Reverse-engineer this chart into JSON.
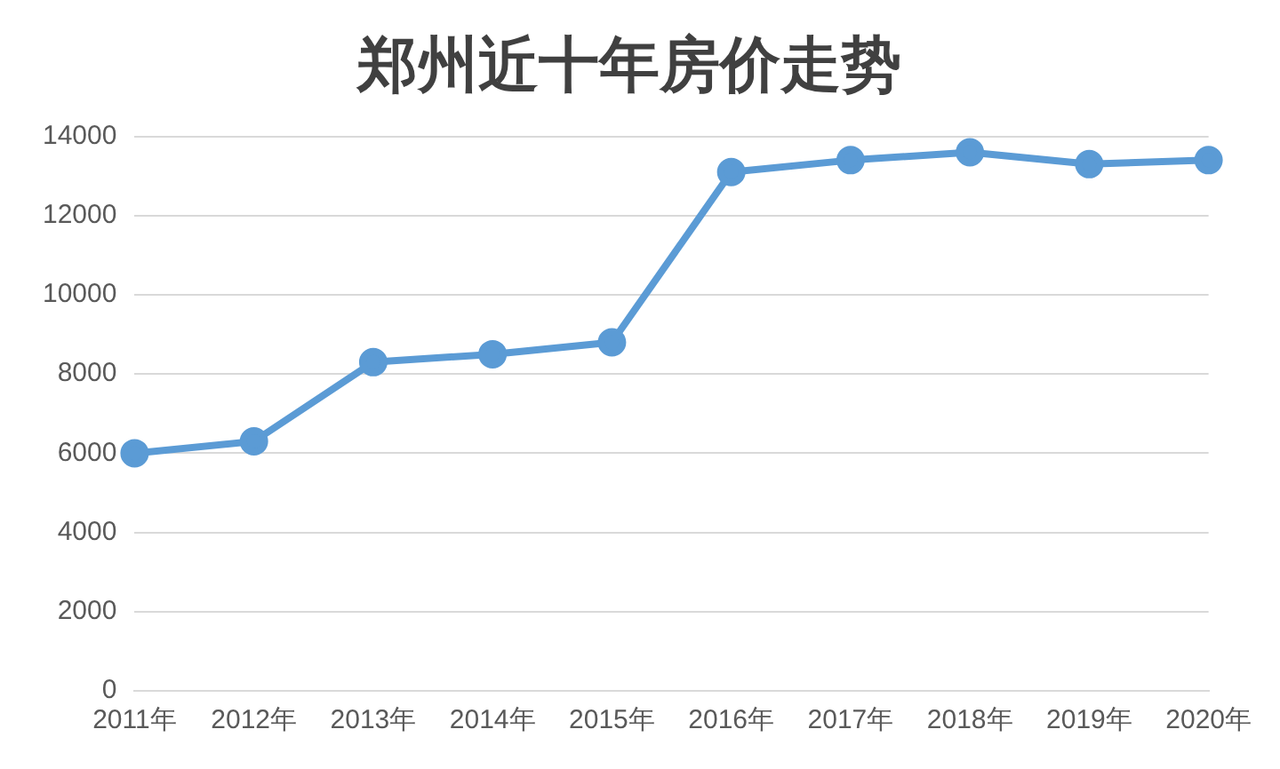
{
  "chart_data": {
    "type": "line",
    "title": "郑州近十年房价走势",
    "categories": [
      "2011年",
      "2012年",
      "2013年",
      "2014年",
      "2015年",
      "2016年",
      "2017年",
      "2018年",
      "2019年",
      "2020年"
    ],
    "series": [
      {
        "color": "#5b9bd5",
        "values": [
          6000,
          6300,
          8300,
          8500,
          8800,
          13100,
          13400,
          13600,
          13300,
          13400
        ]
      }
    ],
    "ylim": [
      0,
      14000
    ],
    "yticks": [
      0,
      2000,
      4000,
      6000,
      8000,
      10000,
      12000,
      14000
    ],
    "grid": "y",
    "legend": false,
    "marker": "circle",
    "line_style": "solid"
  }
}
